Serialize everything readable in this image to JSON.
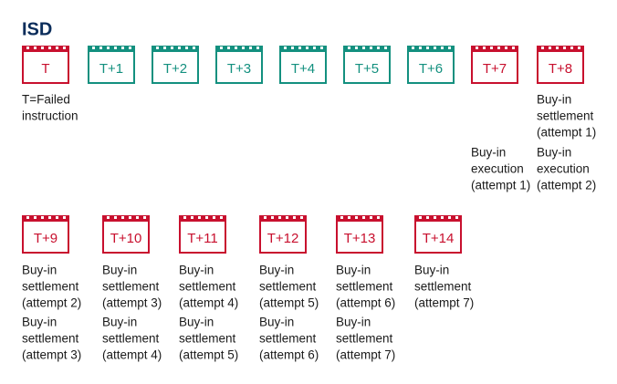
{
  "title": "ISD",
  "rows": [
    {
      "days": [
        {
          "label": "T",
          "color": "#c8102e",
          "notes": [
            [
              "T=Failed",
              "instruction"
            ]
          ]
        },
        {
          "label": "T+1",
          "color": "#13907f",
          "notes": []
        },
        {
          "label": "T+2",
          "color": "#13907f",
          "notes": []
        },
        {
          "label": "T+3",
          "color": "#13907f",
          "notes": []
        },
        {
          "label": "T+4",
          "color": "#13907f",
          "notes": []
        },
        {
          "label": "T+5",
          "color": "#13907f",
          "notes": []
        },
        {
          "label": "T+6",
          "color": "#13907f",
          "notes": []
        },
        {
          "label": "T+7",
          "color": "#c8102e",
          "notes": [
            null,
            [
              "Buy-in",
              "execution",
              "(attempt 1)"
            ]
          ]
        },
        {
          "label": "T+8",
          "color": "#c8102e",
          "notes": [
            [
              "Buy-in",
              "settlement",
              "(attempt 1)"
            ],
            [
              "Buy-in",
              "execution",
              "(attempt 2)"
            ]
          ]
        }
      ]
    },
    {
      "days": [
        {
          "label": "T+9",
          "color": "#c8102e",
          "notes": [
            [
              "Buy-in",
              "settlement",
              "(attempt 2)"
            ],
            [
              "Buy-in",
              "settlement",
              "(attempt 3)"
            ]
          ]
        },
        {
          "label": "T+10",
          "color": "#c8102e",
          "notes": [
            [
              "Buy-in",
              "settlement",
              "(attempt 3)"
            ],
            [
              "Buy-in",
              "settlement",
              "(attempt 4)"
            ]
          ]
        },
        {
          "label": "T+11",
          "color": "#c8102e",
          "notes": [
            [
              "Buy-in",
              "settlement",
              "(attempt 4)"
            ],
            [
              "Buy-in",
              "settlement",
              "(attempt 5)"
            ]
          ]
        },
        {
          "label": "T+12",
          "color": "#c8102e",
          "notes": [
            [
              "Buy-in",
              "settlement",
              "(attempt 5)"
            ],
            [
              "Buy-in",
              "settlement",
              "(attempt 6)"
            ]
          ]
        },
        {
          "label": "T+13",
          "color": "#c8102e",
          "notes": [
            [
              "Buy-in",
              "settlement",
              "(attempt 6)"
            ],
            [
              "Buy-in",
              "settlement",
              "(attempt 7)"
            ]
          ]
        },
        {
          "label": "T+14",
          "color": "#c8102e",
          "notes": [
            [
              "Buy-in",
              "settlement",
              "(attempt 7)"
            ]
          ]
        }
      ]
    }
  ]
}
